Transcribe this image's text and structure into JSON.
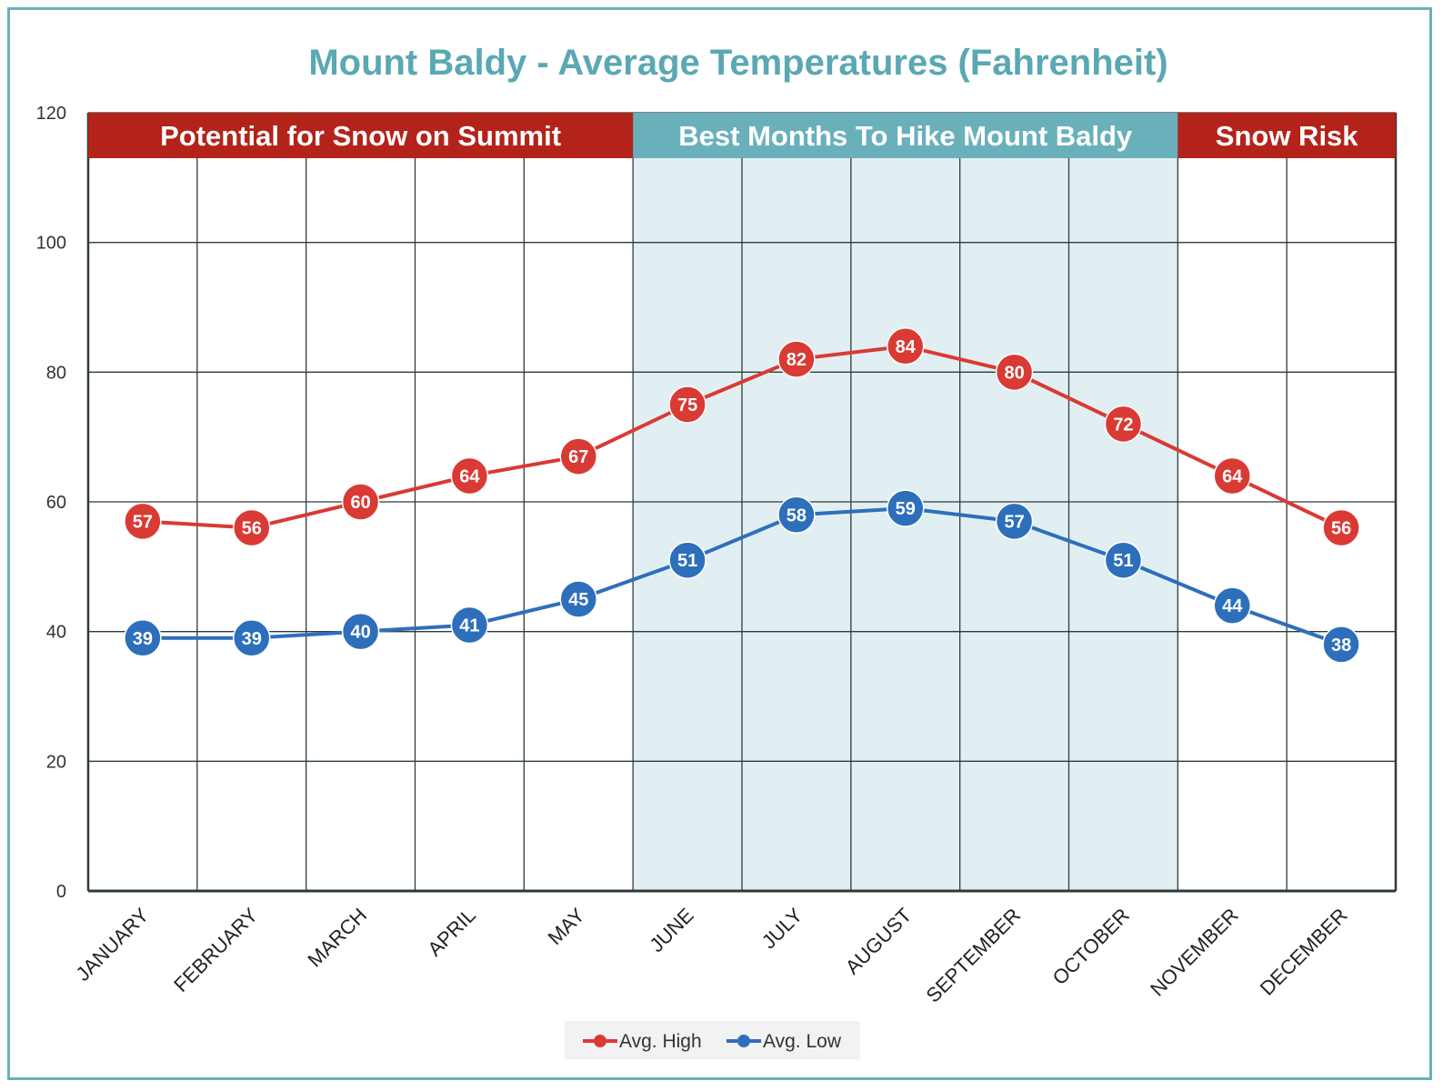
{
  "chart_data": {
    "type": "line",
    "title": "Mount Baldy - Average Temperatures (Fahrenheit)",
    "categories": [
      "JANUARY",
      "FEBRUARY",
      "MARCH",
      "APRIL",
      "MAY",
      "JUNE",
      "JULY",
      "AUGUST",
      "SEPTEMBER",
      "OCTOBER",
      "NOVEMBER",
      "DECEMBER"
    ],
    "series": [
      {
        "name": "Avg. High",
        "color": "#d93a34",
        "values": [
          57,
          56,
          60,
          64,
          67,
          75,
          82,
          84,
          80,
          72,
          64,
          56
        ]
      },
      {
        "name": "Avg. Low",
        "color": "#2d6fbb",
        "values": [
          39,
          39,
          40,
          41,
          45,
          51,
          58,
          59,
          57,
          51,
          44,
          38
        ]
      }
    ],
    "ylim": [
      0,
      120
    ],
    "yticks": [
      0,
      20,
      40,
      60,
      80,
      100,
      120
    ],
    "grid": true,
    "legend": "bottom-center",
    "bands": [
      {
        "label": "Potential for Snow on Summit",
        "start_month": 0,
        "end_month": 5,
        "color": "#b3231a",
        "shaded": false
      },
      {
        "label": "Best Months To Hike Mount Baldy",
        "start_month": 5,
        "end_month": 10,
        "color": "#6ab0bb",
        "shaded": true,
        "shade_color": "#e2eff2"
      },
      {
        "label": "Snow Risk",
        "start_month": 10,
        "end_month": 12,
        "color": "#b3231a",
        "shaded": false
      }
    ]
  }
}
